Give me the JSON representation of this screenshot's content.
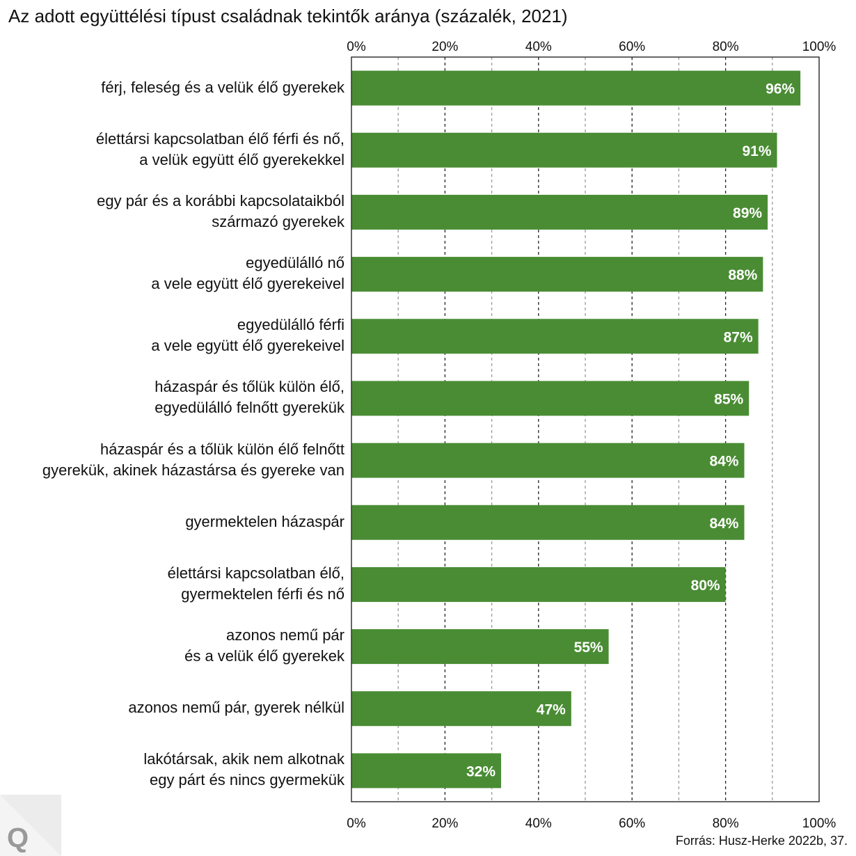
{
  "chart_data": {
    "type": "bar",
    "orientation": "horizontal",
    "title": "Az adott együttélési típust családnak tekintők aránya (százalék, 2021)",
    "categories": [
      [
        "férj, feleség és a velük élő gyerekek"
      ],
      [
        "élettársi kapcsolatban élő férfi és nő,",
        "a velük együtt élő gyerekekkel"
      ],
      [
        "egy pár és a korábbi kapcsolataikból",
        "származó gyerekek"
      ],
      [
        "egyedülálló nő",
        "a vele együtt élő gyerekeivel"
      ],
      [
        "egyedülálló férfi",
        "a vele együtt élő gyerekeivel"
      ],
      [
        "házaspár és tőlük külön élő,",
        "egyedülálló felnőtt gyerekük"
      ],
      [
        "házaspár és a tőlük külön élő felnőtt",
        "gyerekük, akinek házastársa és gyereke van"
      ],
      [
        "gyermektelen házaspár"
      ],
      [
        "élettársi kapcsolatban élő,",
        "gyermektelen férfi és nő"
      ],
      [
        "azonos nemű pár",
        "és a velük élő gyerekek"
      ],
      [
        "azonos nemű pár, gyerek nélkül"
      ],
      [
        "lakótársak, akik nem alkotnak",
        "egy párt és nincs gyermekük"
      ]
    ],
    "values": [
      96,
      91,
      89,
      88,
      87,
      85,
      84,
      84,
      80,
      55,
      47,
      32
    ],
    "data_labels": [
      "96%",
      "91%",
      "89%",
      "88%",
      "87%",
      "85%",
      "84%",
      "84%",
      "80%",
      "55%",
      "47%",
      "32%"
    ],
    "xlim": [
      0,
      100
    ],
    "xticks": [
      0,
      20,
      40,
      60,
      80,
      100
    ],
    "xtick_labels": [
      "0%",
      "20%",
      "40%",
      "60%",
      "80%",
      "100%"
    ],
    "grid": true,
    "bar_color": "#4a8c34",
    "xlabel": "",
    "ylabel": ""
  },
  "source": "Forrás: Husz-Herke 2022b, 37.",
  "logo_text": "Q"
}
